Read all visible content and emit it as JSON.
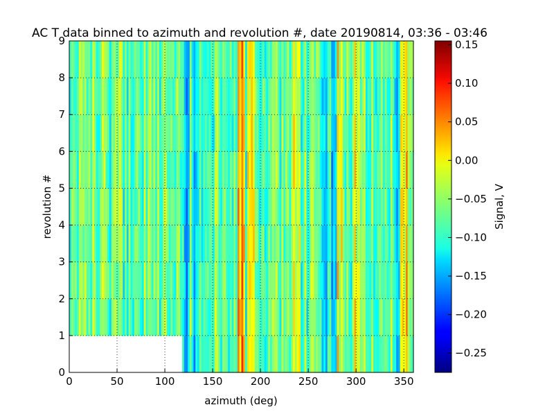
{
  "chart_data": {
    "type": "heatmap",
    "title": "AC T data binned to azimuth and revolution #, date 20190814, 03:36 - 03:46",
    "xlabel": "azimuth (deg)",
    "ylabel": "revolution #",
    "xlim": [
      0,
      360
    ],
    "ylim": [
      0,
      9
    ],
    "xticks": [
      "0",
      "50",
      "100",
      "150",
      "200",
      "250",
      "300",
      "350"
    ],
    "yticks": [
      "0",
      "1",
      "2",
      "3",
      "4",
      "5",
      "6",
      "7",
      "8",
      "9"
    ],
    "grid": true,
    "colormap": "jet",
    "colorbar": {
      "label": "Signal, V",
      "range": [
        -0.275,
        0.155
      ],
      "ticks": [
        "0.15",
        "0.10",
        "0.05",
        "0.00",
        "−0.05",
        "−0.10",
        "−0.15",
        "−0.20",
        "−0.25"
      ]
    },
    "missing_region": {
      "revolution": [
        0,
        1
      ],
      "azimuth": [
        0,
        118
      ]
    },
    "features": [
      {
        "azimuth": 123,
        "value": -0.2
      },
      {
        "azimuth": 132,
        "value": -0.18
      },
      {
        "azimuth": 148,
        "value": -0.12
      },
      {
        "azimuth": 180,
        "value": 0.1
      },
      {
        "azimuth": 190,
        "value": 0.05
      },
      {
        "azimuth": 238,
        "value": 0.03
      },
      {
        "azimuth": 266,
        "value": -0.15
      },
      {
        "azimuth": 277,
        "value": -0.2
      },
      {
        "azimuth": 283,
        "value": 0.04
      },
      {
        "azimuth": 300,
        "value": 0.02
      },
      {
        "azimuth": 343,
        "value": -0.17
      },
      {
        "azimuth": 350,
        "value": 0.04
      }
    ]
  }
}
